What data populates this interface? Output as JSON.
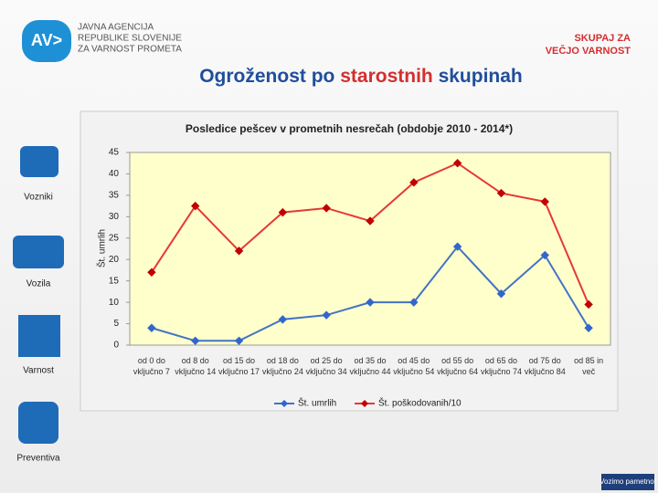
{
  "header": {
    "agency": [
      "JAVNA AGENCIJA",
      "REPUBLIKE SLOVENIJE",
      "ZA VARNOST PROMETA"
    ],
    "slogan": [
      "SKUPAJ ZA",
      "VEČJO VARNOST"
    ]
  },
  "slide_title": [
    "Ogroženost po ",
    "starostnih",
    " skupinah"
  ],
  "sidebar": [
    "Vozniki",
    "Vozila",
    "Varnost",
    "Preventiva"
  ],
  "footer": "Vozimo pametno!",
  "chart_data": {
    "type": "line",
    "title": "Posledice pešcev v prometnih nesrečah (obdobje 2010 - 2014*)",
    "y_label": "Št. umrlih",
    "categories": [
      "od 0 do vključno 7",
      "od 8 do vključno 14",
      "od 15 do vključno 17",
      "od 18 do vključno 24",
      "od 25 do vključno 34",
      "od 35 do vključno 44",
      "od 45 do vključno 54",
      "od 55 do vključno 64",
      "od 65 do vključno 74",
      "od 75 do vključno 84",
      "od 85 in več"
    ],
    "series": [
      {
        "name": "Št. umrlih",
        "color": "#4472c4",
        "marker": "#3366cc",
        "values": [
          4,
          1,
          1,
          6,
          7,
          10,
          10,
          23,
          12,
          21,
          4
        ]
      },
      {
        "name": "Št. poškodovanih/10",
        "color": "#e53935",
        "marker": "#c00000",
        "values": [
          17,
          32.5,
          22,
          31,
          32,
          29,
          38,
          42.5,
          35.5,
          33.5,
          9.5
        ]
      }
    ],
    "ylim": [
      0,
      45
    ],
    "yticks": [
      0,
      5,
      10,
      15,
      20,
      25,
      30,
      35,
      40,
      45
    ],
    "grid": false,
    "legend": "bottom"
  }
}
